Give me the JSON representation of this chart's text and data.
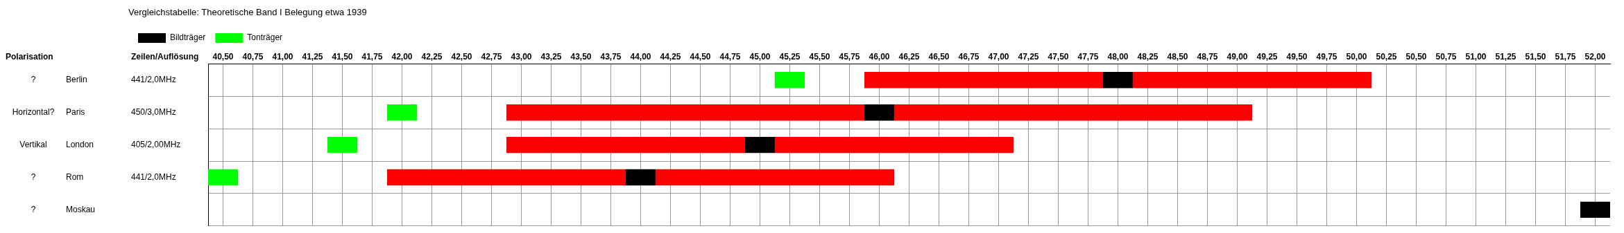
{
  "chart_data": {
    "type": "bar",
    "orientation": "horizontal",
    "title": "Vergleichstabelle:  Theoretische Band I Belegung etwa 1939",
    "ylabel": "Polarisation",
    "y2label": "Zeilen/Auflösung",
    "categories": [
      "Berlin",
      "Paris",
      "London",
      "Rom",
      "Moskau"
    ],
    "series": [
      {
        "name": "Bildträger",
        "color": "#000000",
        "base": [
          47.875,
          45.875,
          44.875,
          43.875,
          51.875
        ],
        "values": [
          0.25,
          0.25,
          0.25,
          0.25,
          0.25
        ]
      },
      {
        "name": "Tonträger",
        "color": "#00ff00",
        "base": [
          45.125,
          41.875,
          41.375,
          40.375,
          null
        ],
        "values": [
          0.25,
          0.25,
          0.25,
          0.25,
          null
        ]
      },
      {
        "color": "#ff0000",
        "base": [
          45.875,
          42.875,
          42.875,
          41.875,
          null
        ],
        "values": [
          2.0,
          3.0,
          2.0,
          2.0,
          null
        ]
      },
      {
        "color": "#ff0000",
        "base": [
          48.125,
          46.125,
          45.125,
          44.125,
          null
        ],
        "values": [
          2.0,
          3.0,
          2.0,
          2.0,
          null
        ]
      }
    ],
    "xlim": [
      40.375,
      52.125
    ],
    "xticks": [
      {
        "value": 40.5,
        "label": "40,50"
      },
      {
        "value": 40.75,
        "label": "40,75"
      },
      {
        "value": 41,
        "label": "41,00"
      },
      {
        "value": 41.25,
        "label": "41,25"
      },
      {
        "value": 41.5,
        "label": "41,50"
      },
      {
        "value": 41.75,
        "label": "41,75"
      },
      {
        "value": 42,
        "label": "42,00"
      },
      {
        "value": 42.25,
        "label": "42,25"
      },
      {
        "value": 42.5,
        "label": "42,50"
      },
      {
        "value": 42.75,
        "label": "42,75"
      },
      {
        "value": 43,
        "label": "43,00"
      },
      {
        "value": 43.25,
        "label": "43,25"
      },
      {
        "value": 43.5,
        "label": "43,50"
      },
      {
        "value": 43.75,
        "label": "43,75"
      },
      {
        "value": 44,
        "label": "44,00"
      },
      {
        "value": 44.25,
        "label": "44,25"
      },
      {
        "value": 44.5,
        "label": "44,50"
      },
      {
        "value": 44.75,
        "label": "44,75"
      },
      {
        "value": 45,
        "label": "45,00"
      },
      {
        "value": 45.25,
        "label": "45,25"
      },
      {
        "value": 45.5,
        "label": "45,50"
      },
      {
        "value": 45.75,
        "label": "45,75"
      },
      {
        "value": 46,
        "label": "46,00"
      },
      {
        "value": 46.25,
        "label": "46,25"
      },
      {
        "value": 46.5,
        "label": "46,50"
      },
      {
        "value": 46.75,
        "label": "46,75"
      },
      {
        "value": 47,
        "label": "47,00"
      },
      {
        "value": 47.25,
        "label": "47,25"
      },
      {
        "value": 47.5,
        "label": "47,50"
      },
      {
        "value": 47.75,
        "label": "47,75"
      },
      {
        "value": 48,
        "label": "48,00"
      },
      {
        "value": 48.25,
        "label": "48,25"
      },
      {
        "value": 48.5,
        "label": "48,50"
      },
      {
        "value": 48.75,
        "label": "48,75"
      },
      {
        "value": 49,
        "label": "49,00"
      },
      {
        "value": 49.25,
        "label": "49,25"
      },
      {
        "value": 49.5,
        "label": "49,50"
      },
      {
        "value": 49.75,
        "label": "49,75"
      },
      {
        "value": 50,
        "label": "50,00"
      },
      {
        "value": 50.25,
        "label": "50,25"
      },
      {
        "value": 50.5,
        "label": "50,50"
      },
      {
        "value": 50.75,
        "label": "50,75"
      },
      {
        "value": 51,
        "label": "51,00"
      },
      {
        "value": 51.25,
        "label": "51,25"
      },
      {
        "value": 51.5,
        "label": "51,50"
      },
      {
        "value": 51.75,
        "label": "51,75"
      },
      {
        "value": 52,
        "label": "52,00"
      }
    ],
    "annotations": [
      "?",
      "Horizontal?",
      "Vertikal",
      "?",
      "?",
      "441/2,0MHz",
      "450/3,0MHz",
      "405/2,00MHz",
      "441/2,0MHz"
    ],
    "grid": true,
    "legend": "top left"
  }
}
